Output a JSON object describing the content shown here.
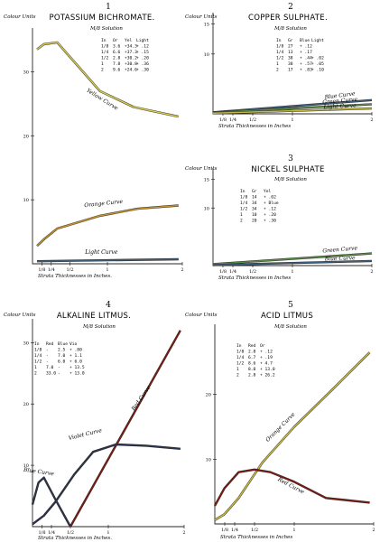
{
  "chart_data": [
    {
      "type": "line",
      "number": "1",
      "title": "POTASSIUM BICHROMATE.",
      "subtitle": "M/8 Solution",
      "ylabel": "Colour Units",
      "xlabel": "Strata Thicknesses in Inches.",
      "x_tick_labels": [
        "1/8",
        "1/4",
        "1/2",
        "1",
        "2"
      ],
      "y_tick_labels": [
        "10",
        "20",
        "30"
      ],
      "xlim": [
        0,
        2
      ],
      "ylim": [
        0,
        36
      ],
      "series": [
        {
          "name": "Yellow Curve",
          "color": "#d8cc52",
          "x": [
            0.06,
            0.15,
            0.33,
            0.9,
            1.35,
            1.95
          ],
          "y": [
            33.5,
            34.3,
            34.6,
            27.0,
            24.5,
            23.0
          ],
          "label_x": 0.92,
          "label_y": 25.2,
          "label_rot": 32
        },
        {
          "name": "Orange Curve",
          "color": "#c2922e",
          "x": [
            0.06,
            0.15,
            0.33,
            0.9,
            1.4,
            1.95
          ],
          "y": [
            2.8,
            3.8,
            5.5,
            7.5,
            8.6,
            9.1
          ],
          "label_x": 0.95,
          "label_y": 8.9,
          "label_rot": -6
        },
        {
          "name": "Light Curve",
          "color": "#3f5d75",
          "x": [
            0.06,
            1.95
          ],
          "y": [
            0.4,
            0.7
          ],
          "label_x": 0.92,
          "label_y": 1.3,
          "label_rot": 0
        }
      ],
      "table": {
        "header": [
          "In",
          "Or",
          "Yel",
          "Light"
        ],
        "rows": [
          [
            "1/8",
            "3.6",
            "+34.3",
            "+ .12"
          ],
          [
            "1/4",
            "6.6",
            "+37.3",
            "+ .15"
          ],
          [
            "1/2",
            "2.8",
            "+30.2",
            "+ .20"
          ],
          [
            "1",
            "7.8",
            "+30.8",
            "+ .36"
          ],
          [
            "2",
            "9.6",
            "+24.6",
            "+ .30"
          ]
        ]
      }
    },
    {
      "type": "line",
      "number": "2",
      "title": "COPPER SULPHATE.",
      "subtitle": "M/8 Solution",
      "ylabel": "Colour Units",
      "xlabel": "Strata Thicknesses in Inches",
      "x_tick_labels": [
        "1/8",
        "1/4",
        "1/2",
        "1",
        "2"
      ],
      "y_tick_labels": [
        "10",
        "15"
      ],
      "xlim": [
        0,
        2
      ],
      "ylim": [
        0,
        16
      ],
      "series": [
        {
          "name": "Blue Curve",
          "color": "#3e5f7e",
          "x": [
            0.0,
            2.0
          ],
          "y": [
            0.25,
            2.3
          ],
          "label_x": 1.6,
          "label_y": 2.5,
          "label_rot": -7
        },
        {
          "name": "Green Curve",
          "color": "#5d8c4b",
          "x": [
            0.0,
            2.0
          ],
          "y": [
            0.2,
            1.6
          ],
          "label_x": 1.6,
          "label_y": 1.6,
          "label_rot": -5
        },
        {
          "name": "Light Curve",
          "color": "#c4ba4a",
          "x": [
            0.0,
            2.0
          ],
          "y": [
            0.1,
            0.9
          ],
          "label_x": 1.6,
          "label_y": 0.7,
          "label_rot": -3
        }
      ],
      "table": {
        "header": [
          "In",
          "Gr",
          "Blue",
          "Light"
        ],
        "rows": [
          [
            "1/8",
            "27",
            "+ .12",
            ""
          ],
          [
            "1/4",
            "13",
            "+ .17",
            ""
          ],
          [
            "1/2",
            "38",
            "+ .44",
            "+ .02"
          ],
          [
            "1",
            "38",
            "+ .57",
            "+ .05"
          ],
          [
            "2",
            "17",
            "+ .83",
            "+ .10"
          ]
        ]
      }
    },
    {
      "type": "line",
      "number": "3",
      "title": "NICKEL SULPHATE",
      "subtitle": "M/8 Solution",
      "ylabel": "Colour Units",
      "xlabel": "Strata Thicknesses in Inches",
      "x_tick_labels": [
        "1/8",
        "1/4",
        "1/2",
        "1",
        "2"
      ],
      "y_tick_labels": [
        "10",
        "15"
      ],
      "xlim": [
        0,
        2
      ],
      "ylim": [
        0,
        16
      ],
      "series": [
        {
          "name": "Green Curve",
          "color": "#5a8a48",
          "x": [
            0.0,
            2.0
          ],
          "y": [
            0.25,
            2.1
          ],
          "label_x": 1.6,
          "label_y": 2.2,
          "label_rot": -5
        },
        {
          "name": "Blue Curve",
          "color": "#3e5f7e",
          "x": [
            0.0,
            2.0
          ],
          "y": [
            0.1,
            0.8
          ],
          "label_x": 1.6,
          "label_y": 0.65,
          "label_rot": -2
        }
      ],
      "table": {
        "header": [
          "In",
          "Gr",
          "Yel"
        ],
        "rows": [
          [
            "1/8",
            "14",
            "+ .02"
          ],
          [
            "1/4",
            "34",
            "+ Blue"
          ],
          [
            "1/2",
            "34",
            "+ .12"
          ],
          [
            "1",
            "10",
            "+ .20"
          ],
          [
            "2",
            "20",
            "+ .30"
          ]
        ]
      }
    },
    {
      "type": "line",
      "number": "4",
      "title": "ALKALINE LITMUS.",
      "subtitle": "M/8 Solution",
      "ylabel": "Colour Units",
      "xlabel": "Strata Thicknesses in Inches.",
      "x_tick_labels": [
        "1/8",
        "1/4",
        "1/2",
        "1",
        "2"
      ],
      "y_tick_labels": [
        "10",
        "20",
        "30"
      ],
      "xlim": [
        0,
        2
      ],
      "ylim": [
        0,
        33
      ],
      "series": [
        {
          "name": "Red Curve",
          "color": "#7e1c14",
          "x": [
            0.5,
            1.95
          ],
          "y": [
            0.0,
            32.0
          ],
          "label_x": 1.45,
          "label_y": 20.5,
          "label_rot": -55
        },
        {
          "name": "Violet Curve",
          "color": "#2c3550",
          "x": [
            0.0,
            0.15,
            0.3,
            0.55,
            0.8,
            1.1,
            1.5,
            1.95
          ],
          "y": [
            0.4,
            1.8,
            4.0,
            8.5,
            12.2,
            13.4,
            13.2,
            12.7
          ],
          "label_x": 0.7,
          "label_y": 14.5,
          "label_rot": -14
        },
        {
          "name": "Blue Curve",
          "color": "#2c3550",
          "x": [
            0.0,
            0.08,
            0.15,
            0.3,
            0.5
          ],
          "y": [
            3.6,
            7.2,
            8.0,
            4.5,
            0.0
          ],
          "label_x": 0.08,
          "label_y": 8.4,
          "label_rot": 8
        }
      ],
      "table": {
        "header": [
          "In",
          "Red",
          "Blue",
          "Vio"
        ],
        "rows": [
          [
            "1/8",
            "-",
            "2.5",
            "+ .80"
          ],
          [
            "1/4",
            "-",
            "7.0",
            "+ 1.1"
          ],
          [
            "1/2",
            "-",
            "6.0",
            "+ 6.0"
          ],
          [
            "1",
            "7.0",
            "-",
            "+ 13.5"
          ],
          [
            "2",
            "33.0",
            "-",
            "+ 13.0"
          ]
        ]
      }
    },
    {
      "type": "line",
      "number": "5",
      "title": "ACID LITMUS",
      "subtitle": "M/8 Solution",
      "ylabel": "Colour Units",
      "xlabel": "Strata Thicknesses in Inches",
      "x_tick_labels": [
        "1/8",
        "1/4",
        "1/2",
        "1",
        "2"
      ],
      "y_tick_labels": [
        "10",
        "20"
      ],
      "xlim": [
        0,
        2
      ],
      "ylim": [
        0,
        30
      ],
      "series": [
        {
          "name": "Orange Curve",
          "color": "#c9bc40",
          "x": [
            0.0,
            0.12,
            0.3,
            0.6,
            1.0,
            1.5,
            1.95
          ],
          "y": [
            0.6,
            1.5,
            4.0,
            9.5,
            15.0,
            21.0,
            26.5
          ],
          "label_x": 0.84,
          "label_y": 14.5,
          "label_rot": -45
        },
        {
          "name": "Red Curve",
          "color": "#7e1c14",
          "x": [
            0.0,
            0.12,
            0.3,
            0.5,
            0.7,
            1.0,
            1.4,
            1.95
          ],
          "y": [
            2.8,
            5.5,
            8.0,
            8.4,
            8.0,
            6.5,
            4.0,
            3.3
          ],
          "label_x": 0.95,
          "label_y": 5.4,
          "label_rot": 28
        }
      ],
      "table": {
        "header": [
          "In",
          "Red",
          "Or"
        ],
        "rows": [
          [
            "1/8",
            "2.8",
            "+ .12"
          ],
          [
            "1/4",
            "6.7",
            "+ .19"
          ],
          [
            "1/2",
            "8.6",
            "+ 4.7"
          ],
          [
            "1",
            "8.0",
            "+ 13.0"
          ],
          [
            "2",
            "2.8",
            "+ 26.2"
          ]
        ]
      }
    }
  ]
}
